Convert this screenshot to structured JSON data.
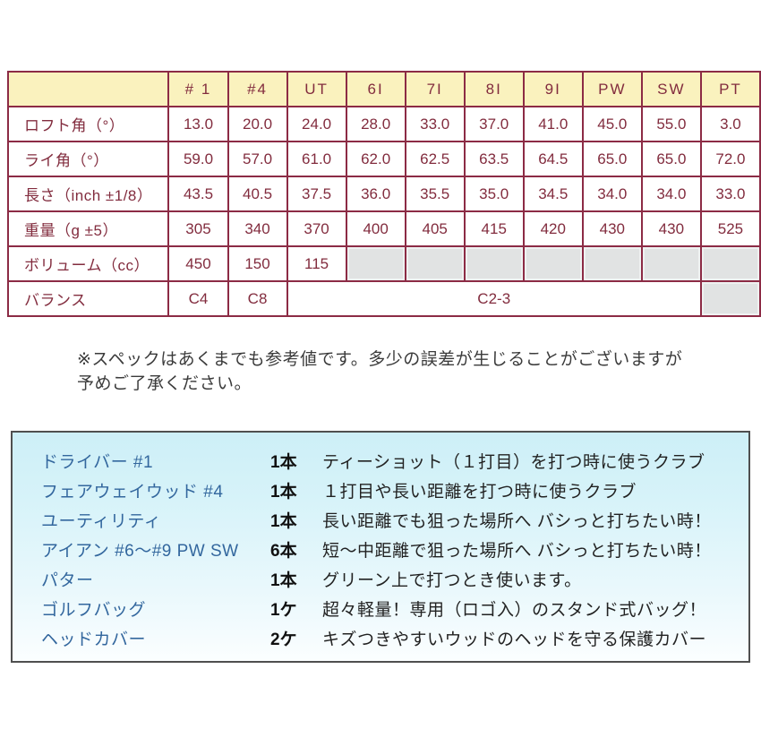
{
  "colors": {
    "table_border": "#8C2B45",
    "table_text": "#822C3E",
    "header_bg": "#FAF2BE",
    "empty_cell_bg": "#E1E3E3",
    "box_border": "#4F4F4F",
    "box_bg_top": "#CDEFF7",
    "box_bg_bottom": "#FBFEFF",
    "club_name_text": "#33679E"
  },
  "spec_table": {
    "columns": [
      "# 1",
      "#4",
      "UT",
      "6I",
      "7I",
      "8I",
      "9I",
      "PW",
      "SW",
      "PT"
    ],
    "rows": [
      {
        "label": "ロフト角（°）",
        "cells": [
          {
            "t": "13.0"
          },
          {
            "t": "20.0"
          },
          {
            "t": "24.0"
          },
          {
            "t": "28.0"
          },
          {
            "t": "33.0"
          },
          {
            "t": "37.0"
          },
          {
            "t": "41.0"
          },
          {
            "t": "45.0"
          },
          {
            "t": "55.0"
          },
          {
            "t": "3.0"
          }
        ]
      },
      {
        "label": "ライ角（°）",
        "cells": [
          {
            "t": "59.0"
          },
          {
            "t": "57.0"
          },
          {
            "t": "61.0"
          },
          {
            "t": "62.0"
          },
          {
            "t": "62.5"
          },
          {
            "t": "63.5"
          },
          {
            "t": "64.5"
          },
          {
            "t": "65.0"
          },
          {
            "t": "65.0"
          },
          {
            "t": "72.0"
          }
        ]
      },
      {
        "label": "長さ（inch ±1/8）",
        "cells": [
          {
            "t": "43.5"
          },
          {
            "t": "40.5"
          },
          {
            "t": "37.5"
          },
          {
            "t": "36.0"
          },
          {
            "t": "35.5"
          },
          {
            "t": "35.0"
          },
          {
            "t": "34.5"
          },
          {
            "t": "34.0"
          },
          {
            "t": "34.0"
          },
          {
            "t": "33.0"
          }
        ]
      },
      {
        "label": "重量（g ±5）",
        "cells": [
          {
            "t": "305"
          },
          {
            "t": "340"
          },
          {
            "t": "370"
          },
          {
            "t": "400"
          },
          {
            "t": "405"
          },
          {
            "t": "415"
          },
          {
            "t": "420"
          },
          {
            "t": "430"
          },
          {
            "t": "430"
          },
          {
            "t": "525"
          }
        ]
      },
      {
        "label": "ボリューム（cc）",
        "cells": [
          {
            "t": "450"
          },
          {
            "t": "150"
          },
          {
            "t": "115"
          },
          {
            "gray": true
          },
          {
            "gray": true
          },
          {
            "gray": true
          },
          {
            "gray": true
          },
          {
            "gray": true
          },
          {
            "gray": true
          },
          {
            "gray": true
          }
        ]
      },
      {
        "label": "バランス",
        "cells": [
          {
            "t": "C4"
          },
          {
            "t": "C8"
          },
          {
            "t": "C2-3",
            "span": 7
          },
          {
            "gray": true
          }
        ]
      }
    ]
  },
  "note": {
    "line1": "※スペックはあくまでも参考値です。多少の誤差が生じることがございますが",
    "line2": "予めご了承ください。"
  },
  "set_contents": {
    "items": [
      {
        "name": "ドライバー #1",
        "count": "1本",
        "desc": "ティーショット（１打目）を打つ時に使うクラブ"
      },
      {
        "name": "フェアウェイウッド #4",
        "count": "1本",
        "desc": "１打目や長い距離を打つ時に使うクラブ"
      },
      {
        "name": "ユーティリティ",
        "count": "1本",
        "desc": "長い距離でも狙った場所へ バシっと打ちたい時！"
      },
      {
        "name": "アイアン #6〜#9 PW SW",
        "count": "6本",
        "desc": "短〜中距離で狙った場所へ バシっと打ちたい時！"
      },
      {
        "name": "パター",
        "count": "1本",
        "desc": "グリーン上で打つとき使います。"
      },
      {
        "name": "ゴルフバッグ",
        "count": "1ケ",
        "desc": "超々軽量！専用（ロゴ入）のスタンド式バッグ！"
      },
      {
        "name": "ヘッドカバー",
        "count": "2ケ",
        "desc": "キズつきやすいウッドのヘッドを守る保護カバー"
      }
    ]
  }
}
